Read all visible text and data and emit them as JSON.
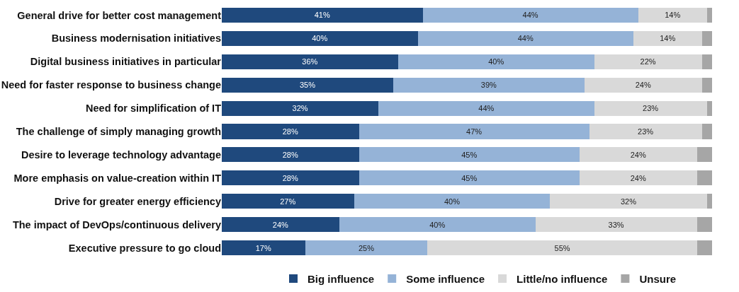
{
  "chart_data": {
    "type": "bar",
    "orientation": "horizontal",
    "stacked": true,
    "legend": "bottom",
    "categories": [
      "General drive for better cost management",
      "Business modernisation initiatives",
      "Digital business initiatives in particular",
      "Need for faster response to business change",
      "Need for simplification of IT",
      "The challenge of simply managing growth",
      "Desire to leverage technology advantage",
      "More emphasis on value-creation within IT",
      "Drive for greater energy efficiency",
      "The impact of DevOps/continuous delivery",
      "Executive pressure to go cloud"
    ],
    "series": [
      {
        "name": "Big influence",
        "color": "#1f497d",
        "values": [
          41,
          40,
          36,
          35,
          32,
          28,
          28,
          28,
          27,
          24,
          17
        ],
        "value_labels": [
          "41%",
          "40%",
          "36%",
          "35%",
          "32%",
          "28%",
          "28%",
          "28%",
          "27%",
          "24%",
          "17%"
        ]
      },
      {
        "name": "Some influence",
        "color": "#95b3d7",
        "values": [
          44,
          44,
          40,
          39,
          44,
          47,
          45,
          45,
          40,
          40,
          25
        ],
        "value_labels": [
          "44%",
          "44%",
          "40%",
          "39%",
          "44%",
          "47%",
          "45%",
          "45%",
          "40%",
          "40%",
          "25%"
        ]
      },
      {
        "name": "Little/no influence",
        "color": "#d9d9d9",
        "values": [
          14,
          14,
          22,
          24,
          23,
          23,
          24,
          24,
          32,
          33,
          55
        ],
        "value_labels": [
          "14%",
          "14%",
          "22%",
          "24%",
          "23%",
          "23%",
          "24%",
          "24%",
          "32%",
          "33%",
          "55%"
        ]
      },
      {
        "name": "Unsure",
        "color": "#a6a6a6",
        "values": [
          1,
          2,
          2,
          2,
          1,
          2,
          3,
          3,
          1,
          3,
          3
        ],
        "value_labels": [
          null,
          null,
          null,
          null,
          null,
          null,
          null,
          null,
          null,
          null,
          null
        ]
      }
    ]
  }
}
